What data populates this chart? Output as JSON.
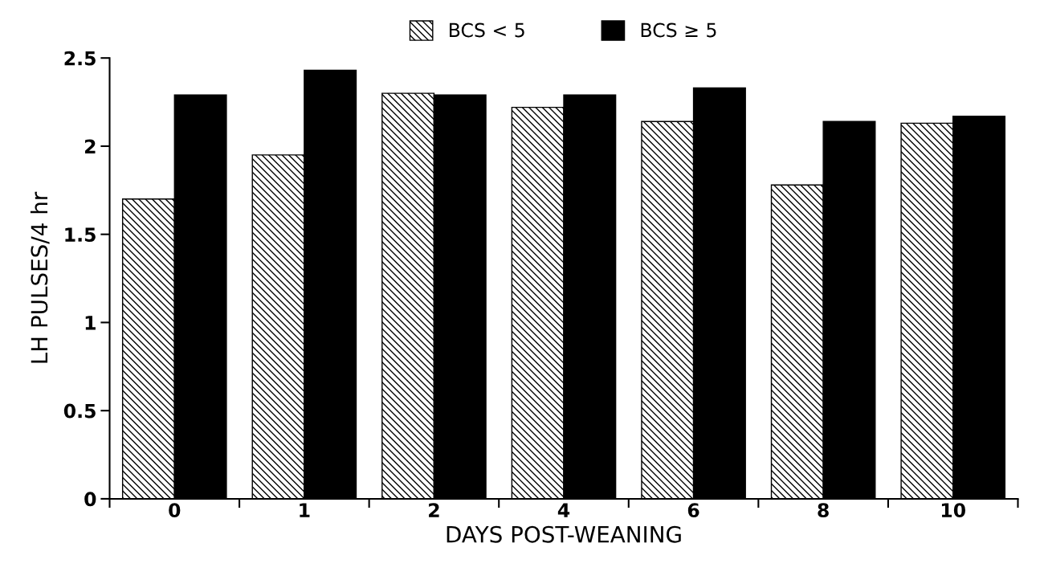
{
  "chart_data": {
    "type": "bar",
    "xlabel": "DAYS POST-WEANING",
    "ylabel": "LH PULSES/4 hr",
    "categories": [
      "0",
      "1",
      "2",
      "4",
      "6",
      "8",
      "10"
    ],
    "series": [
      {
        "name": "BCS < 5",
        "color": "#000000",
        "values": [
          1.7,
          1.95,
          2.3,
          2.22,
          2.14,
          1.78,
          2.13
        ]
      },
      {
        "name": "BCS ≥ 5",
        "color": "#000000",
        "values": [
          2.29,
          2.43,
          2.29,
          2.29,
          2.33,
          2.14,
          2.17
        ]
      }
    ],
    "ylim": [
      0,
      2.5
    ],
    "yticks": [
      0,
      0.5,
      1,
      1.5,
      2,
      2.5
    ],
    "grid": false,
    "legend": "top"
  }
}
